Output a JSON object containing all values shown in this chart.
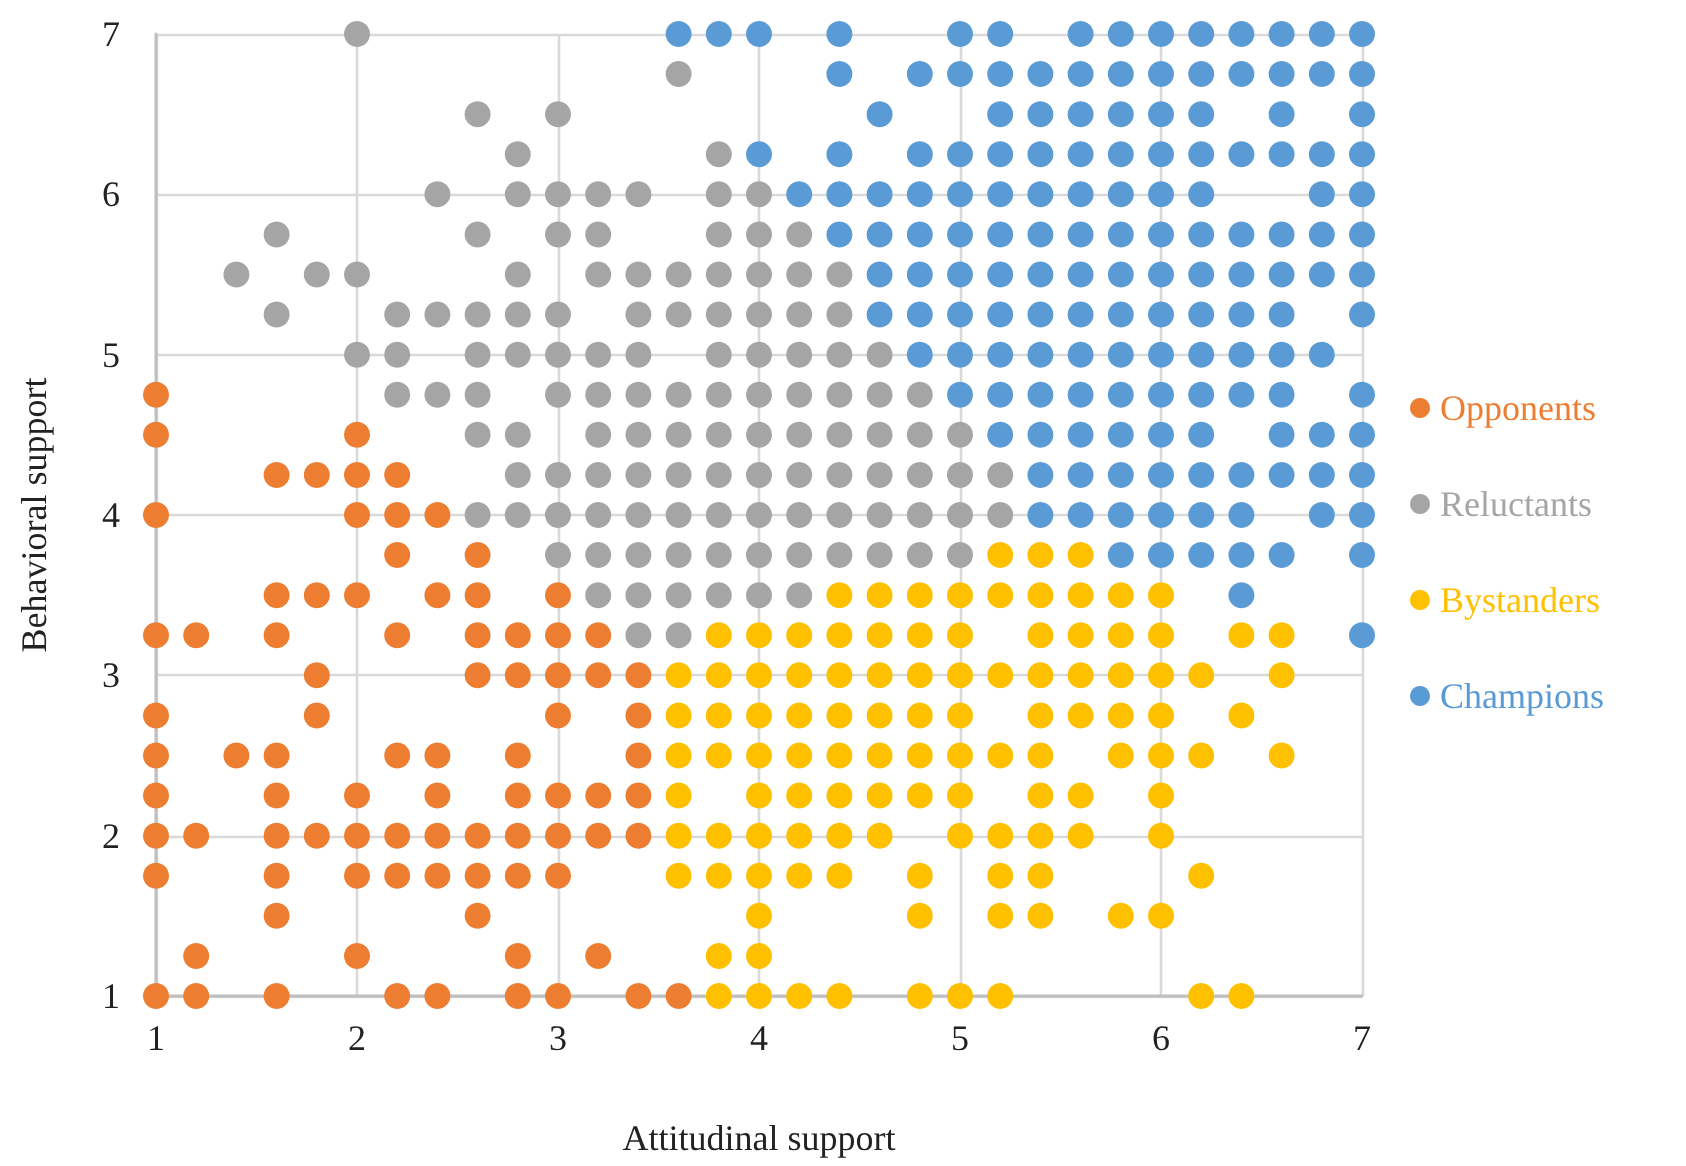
{
  "chart_data": {
    "type": "scatter",
    "xlabel": "Attitudinal support",
    "ylabel": "Behavioral support",
    "xlim": [
      1,
      7
    ],
    "xticks": [
      1,
      2,
      3,
      4,
      5,
      6,
      7
    ],
    "ylim": [
      1,
      7
    ],
    "yticks": [
      1,
      2,
      3,
      4,
      5,
      6,
      7
    ],
    "grid": true,
    "legend": "right",
    "marker": "circle",
    "series": [
      {
        "name": "Opponents",
        "color": "#ed7d31",
        "x": [
          1,
          1.2,
          1.6,
          2.2,
          2.4,
          2.8,
          3,
          3.4,
          3.6,
          1.2,
          2,
          2.8,
          3.2,
          1.6,
          2.6,
          1,
          1.6,
          2,
          2.2,
          2.4,
          2.6,
          2.8,
          3,
          1,
          1.2,
          1.6,
          1.8,
          2,
          2.2,
          2.4,
          2.6,
          2.8,
          3,
          3.2,
          3.4,
          1,
          1.6,
          2,
          2.4,
          2.8,
          3,
          3.2,
          3.4,
          1,
          1.4,
          1.6,
          2.2,
          2.4,
          2.8,
          3.4,
          1,
          1.8,
          3,
          3.4,
          1.8,
          2.6,
          2.8,
          3,
          3.2,
          3.4,
          1,
          1.2,
          1.6,
          2.2,
          2.6,
          2.8,
          3,
          3.2,
          1.6,
          1.8,
          2,
          2.4,
          2.6,
          3,
          2.2,
          2.6,
          1,
          2,
          2.2,
          2.4,
          1.6,
          1.8,
          2,
          2.2,
          1,
          2,
          1
        ],
        "values": [
          1,
          1,
          1,
          1,
          1,
          1,
          1,
          1,
          1,
          1.25,
          1.25,
          1.25,
          1.25,
          1.5,
          1.5,
          1.75,
          1.75,
          1.75,
          1.75,
          1.75,
          1.75,
          1.75,
          1.75,
          2,
          2,
          2,
          2,
          2,
          2,
          2,
          2,
          2,
          2,
          2,
          2,
          2.25,
          2.25,
          2.25,
          2.25,
          2.25,
          2.25,
          2.25,
          2.25,
          2.5,
          2.5,
          2.5,
          2.5,
          2.5,
          2.5,
          2.5,
          2.75,
          2.75,
          2.75,
          2.75,
          3,
          3,
          3,
          3,
          3,
          3,
          3.25,
          3.25,
          3.25,
          3.25,
          3.25,
          3.25,
          3.25,
          3.25,
          3.5,
          3.5,
          3.5,
          3.5,
          3.5,
          3.5,
          3.75,
          3.75,
          4,
          4,
          4,
          4,
          4.25,
          4.25,
          4.25,
          4.25,
          4.5,
          4.5,
          4.75
        ]
      },
      {
        "name": "Reluctants",
        "color": "#a5a5a5",
        "x": [
          3.4,
          3.6,
          3.2,
          3.4,
          3.6,
          3.8,
          4,
          4.2,
          3,
          3.2,
          3.4,
          3.6,
          3.8,
          4,
          4.2,
          4.4,
          4.6,
          4.8,
          5,
          2.6,
          2.8,
          3,
          3.2,
          3.4,
          3.6,
          3.8,
          4,
          4.2,
          4.4,
          4.6,
          4.8,
          5,
          5.2,
          2.8,
          3,
          3.2,
          3.4,
          3.6,
          3.8,
          4,
          4.2,
          4.4,
          4.6,
          4.8,
          5,
          5.2,
          2.6,
          2.8,
          3.2,
          3.4,
          3.6,
          3.8,
          4,
          4.2,
          4.4,
          4.6,
          4.8,
          5,
          2.2,
          2.4,
          2.6,
          3,
          3.2,
          3.4,
          3.6,
          3.8,
          4,
          4.2,
          4.4,
          4.6,
          4.8,
          2,
          2.2,
          2.6,
          2.8,
          3,
          3.2,
          3.4,
          3.8,
          4,
          4.2,
          4.4,
          4.6,
          1.6,
          2.2,
          2.4,
          2.6,
          2.8,
          3,
          3.4,
          3.6,
          3.8,
          4,
          4.2,
          4.4,
          1.4,
          1.8,
          2,
          2.8,
          3.2,
          3.4,
          3.6,
          3.8,
          4,
          4.2,
          4.4,
          1.6,
          2.6,
          3,
          3.2,
          3.8,
          4,
          4.2,
          2.4,
          2.8,
          3,
          3.2,
          3.4,
          3.8,
          4,
          2.8,
          3.8,
          2.6,
          3,
          3.6,
          2
        ],
        "values": [
          3.25,
          3.25,
          3.5,
          3.5,
          3.5,
          3.5,
          3.5,
          3.5,
          3.75,
          3.75,
          3.75,
          3.75,
          3.75,
          3.75,
          3.75,
          3.75,
          3.75,
          3.75,
          3.75,
          4,
          4,
          4,
          4,
          4,
          4,
          4,
          4,
          4,
          4,
          4,
          4,
          4,
          4,
          4.25,
          4.25,
          4.25,
          4.25,
          4.25,
          4.25,
          4.25,
          4.25,
          4.25,
          4.25,
          4.25,
          4.25,
          4.25,
          4.5,
          4.5,
          4.5,
          4.5,
          4.5,
          4.5,
          4.5,
          4.5,
          4.5,
          4.5,
          4.5,
          4.5,
          4.75,
          4.75,
          4.75,
          4.75,
          4.75,
          4.75,
          4.75,
          4.75,
          4.75,
          4.75,
          4.75,
          4.75,
          4.75,
          5,
          5,
          5,
          5,
          5,
          5,
          5,
          5,
          5,
          5,
          5,
          5,
          5.25,
          5.25,
          5.25,
          5.25,
          5.25,
          5.25,
          5.25,
          5.25,
          5.25,
          5.25,
          5.25,
          5.25,
          5.5,
          5.5,
          5.5,
          5.5,
          5.5,
          5.5,
          5.5,
          5.5,
          5.5,
          5.5,
          5.5,
          5.75,
          5.75,
          5.75,
          5.75,
          5.75,
          5.75,
          5.75,
          6,
          6,
          6,
          6,
          6,
          6,
          6,
          6.25,
          6.25,
          6.5,
          6.5,
          6.75,
          7
        ]
      },
      {
        "name": "Bystanders",
        "color": "#ffc000",
        "x": [
          3.8,
          4,
          4.2,
          4.4,
          4.8,
          5,
          5.2,
          6.2,
          6.4,
          3.8,
          4,
          4,
          4.8,
          5.2,
          5.4,
          5.8,
          6,
          3.6,
          3.8,
          4,
          4.2,
          4.4,
          4.8,
          5.2,
          5.4,
          6.2,
          3.6,
          3.8,
          4,
          4.2,
          4.4,
          4.6,
          5,
          5.2,
          5.4,
          5.6,
          6,
          3.6,
          4,
          4.2,
          4.4,
          4.6,
          4.8,
          5,
          5.4,
          5.6,
          6,
          3.6,
          3.8,
          4,
          4.2,
          4.4,
          4.6,
          4.8,
          5,
          5.2,
          5.4,
          5.8,
          6,
          6.2,
          6.6,
          3.6,
          3.8,
          4,
          4.2,
          4.4,
          4.6,
          4.8,
          5,
          5.4,
          5.6,
          5.8,
          6,
          6.4,
          3.6,
          3.8,
          4,
          4.2,
          4.4,
          4.6,
          4.8,
          5,
          5.2,
          5.4,
          5.6,
          5.8,
          6,
          6.2,
          6.6,
          3.8,
          4,
          4.2,
          4.4,
          4.6,
          4.8,
          5,
          5.4,
          5.6,
          5.8,
          6,
          6.4,
          6.6,
          4.4,
          4.6,
          4.8,
          5,
          5.2,
          5.4,
          5.6,
          5.8,
          6,
          5.2,
          5.4,
          5.6
        ],
        "values": [
          1,
          1,
          1,
          1,
          1,
          1,
          1,
          1,
          1,
          1.25,
          1.25,
          1.5,
          1.5,
          1.5,
          1.5,
          1.5,
          1.5,
          1.75,
          1.75,
          1.75,
          1.75,
          1.75,
          1.75,
          1.75,
          1.75,
          1.75,
          2,
          2,
          2,
          2,
          2,
          2,
          2,
          2,
          2,
          2,
          2,
          2.25,
          2.25,
          2.25,
          2.25,
          2.25,
          2.25,
          2.25,
          2.25,
          2.25,
          2.25,
          2.5,
          2.5,
          2.5,
          2.5,
          2.5,
          2.5,
          2.5,
          2.5,
          2.5,
          2.5,
          2.5,
          2.5,
          2.5,
          2.5,
          2.75,
          2.75,
          2.75,
          2.75,
          2.75,
          2.75,
          2.75,
          2.75,
          2.75,
          2.75,
          2.75,
          2.75,
          2.75,
          3,
          3,
          3,
          3,
          3,
          3,
          3,
          3,
          3,
          3,
          3,
          3,
          3,
          3,
          3,
          3.25,
          3.25,
          3.25,
          3.25,
          3.25,
          3.25,
          3.25,
          3.25,
          3.25,
          3.25,
          3.25,
          3.25,
          3.25,
          3.5,
          3.5,
          3.5,
          3.5,
          3.5,
          3.5,
          3.5,
          3.5,
          3.5,
          3.75,
          3.75,
          3.75
        ]
      },
      {
        "name": "Champions",
        "color": "#5b9bd5",
        "x": [
          7,
          6.4,
          5.8,
          6,
          6.2,
          6.4,
          6.6,
          7,
          5.4,
          5.6,
          5.8,
          6,
          6.2,
          6.4,
          6.8,
          7,
          5.4,
          5.6,
          5.8,
          6,
          6.2,
          6.4,
          6.6,
          6.8,
          7,
          5.2,
          5.4,
          5.6,
          5.8,
          6,
          6.2,
          6.6,
          6.8,
          7,
          5,
          5.2,
          5.4,
          5.6,
          5.8,
          6,
          6.2,
          6.4,
          6.6,
          7,
          4.8,
          5,
          5.2,
          5.4,
          5.6,
          5.8,
          6,
          6.2,
          6.4,
          6.6,
          6.8,
          4.6,
          4.8,
          5,
          5.2,
          5.4,
          5.6,
          5.8,
          6,
          6.2,
          6.4,
          6.6,
          7,
          4.6,
          4.8,
          5,
          5.2,
          5.4,
          5.6,
          5.8,
          6,
          6.2,
          6.4,
          6.6,
          6.8,
          7,
          4.4,
          4.6,
          4.8,
          5,
          5.2,
          5.4,
          5.6,
          5.8,
          6,
          6.2,
          6.4,
          6.6,
          6.8,
          7,
          4.2,
          4.4,
          4.6,
          4.8,
          5,
          5.2,
          5.4,
          5.6,
          5.8,
          6,
          6.2,
          6.8,
          7,
          4,
          4.4,
          4.8,
          5,
          5.2,
          5.4,
          5.6,
          5.8,
          6,
          6.2,
          6.4,
          6.6,
          6.8,
          7,
          4.6,
          5.2,
          5.4,
          5.6,
          5.8,
          6,
          6.2,
          6.6,
          7,
          4.4,
          4.8,
          5,
          5.2,
          5.4,
          5.6,
          5.8,
          6,
          6.2,
          6.4,
          6.6,
          6.8,
          7,
          3.6,
          3.8,
          4,
          4.4,
          5,
          5.2,
          5.6,
          5.8,
          6,
          6.2,
          6.4,
          6.6,
          6.8,
          7
        ],
        "values": [
          3.25,
          3.5,
          3.75,
          3.75,
          3.75,
          3.75,
          3.75,
          3.75,
          4,
          4,
          4,
          4,
          4,
          4,
          4,
          4,
          4.25,
          4.25,
          4.25,
          4.25,
          4.25,
          4.25,
          4.25,
          4.25,
          4.25,
          4.5,
          4.5,
          4.5,
          4.5,
          4.5,
          4.5,
          4.5,
          4.5,
          4.5,
          4.75,
          4.75,
          4.75,
          4.75,
          4.75,
          4.75,
          4.75,
          4.75,
          4.75,
          4.75,
          5,
          5,
          5,
          5,
          5,
          5,
          5,
          5,
          5,
          5,
          5,
          5.25,
          5.25,
          5.25,
          5.25,
          5.25,
          5.25,
          5.25,
          5.25,
          5.25,
          5.25,
          5.25,
          5.25,
          5.5,
          5.5,
          5.5,
          5.5,
          5.5,
          5.5,
          5.5,
          5.5,
          5.5,
          5.5,
          5.5,
          5.5,
          5.5,
          5.75,
          5.75,
          5.75,
          5.75,
          5.75,
          5.75,
          5.75,
          5.75,
          5.75,
          5.75,
          5.75,
          5.75,
          5.75,
          5.75,
          6,
          6,
          6,
          6,
          6,
          6,
          6,
          6,
          6,
          6,
          6,
          6,
          6,
          6.25,
          6.25,
          6.25,
          6.25,
          6.25,
          6.25,
          6.25,
          6.25,
          6.25,
          6.25,
          6.25,
          6.25,
          6.25,
          6.25,
          6.5,
          6.5,
          6.5,
          6.5,
          6.5,
          6.5,
          6.5,
          6.5,
          6.5,
          6.75,
          6.75,
          6.75,
          6.75,
          6.75,
          6.75,
          6.75,
          6.75,
          6.75,
          6.75,
          6.75,
          6.75,
          6.75,
          7,
          7,
          7,
          7,
          7,
          7,
          7,
          7,
          7,
          7,
          7,
          7,
          7,
          7
        ]
      }
    ]
  }
}
